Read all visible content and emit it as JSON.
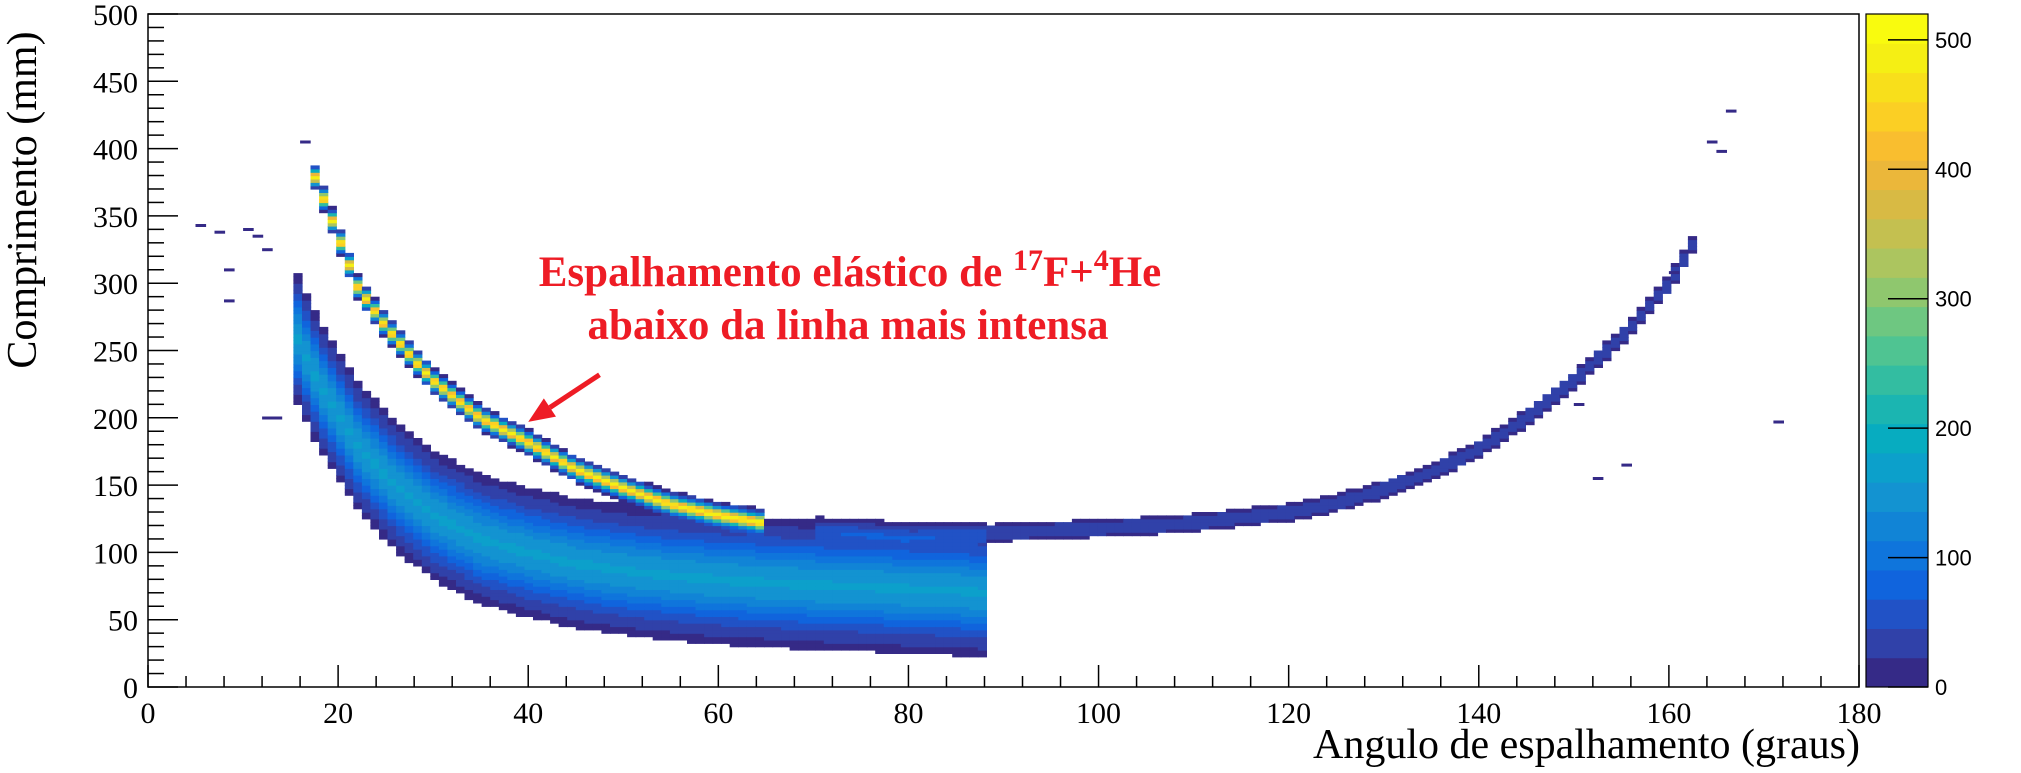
{
  "chart_data": {
    "type": "heatmap",
    "title": "",
    "xlabel": "Angulo de espalhamento (graus)",
    "ylabel": "Comprimento (mm)",
    "xlim": [
      0,
      180
    ],
    "ylim": [
      0,
      500
    ],
    "x_ticks": [
      0,
      20,
      40,
      60,
      80,
      100,
      120,
      140,
      160,
      180
    ],
    "y_ticks": [
      0,
      50,
      100,
      150,
      200,
      250,
      300,
      350,
      400,
      450,
      500
    ],
    "x_tick_labels": [
      "0",
      "20",
      "40",
      "60",
      "80",
      "100",
      "120",
      "140",
      "160",
      "180"
    ],
    "y_tick_labels": [
      "0",
      "50",
      "100",
      "150",
      "200",
      "250",
      "300",
      "350",
      "400",
      "450",
      "500"
    ],
    "colorbar": {
      "range": [
        0,
        520
      ],
      "ticks": [
        0,
        100,
        200,
        300,
        400,
        500
      ],
      "tick_labels": [
        "0",
        "100",
        "200",
        "300",
        "400",
        "500"
      ],
      "palette": [
        "#352a87",
        "#3041a9",
        "#2152c6",
        "#1064dd",
        "#0f75dc",
        "#1184d6",
        "#1393d1",
        "#0ca0cb",
        "#07acc0",
        "#1bb5b1",
        "#33bda1",
        "#4fc492",
        "#6ec781",
        "#8fc76e",
        "#acc55f",
        "#c4c050",
        "#d8ba44",
        "#ebb73a",
        "#f9be2f",
        "#fbcf24",
        "#f8df1b",
        "#f5ef14",
        "#f9fb0e"
      ]
    },
    "annotation": {
      "line1_prefix": "Espalhamento elástico de ",
      "sup1": "17",
      "mid": "F+",
      "sup2": "4",
      "suffix": "He",
      "line2": "abaixo da linha mais intensa",
      "arrow_from": [
        47.5,
        232
      ],
      "arrow_to": [
        40,
        197
      ]
    },
    "ridges": [
      {
        "name": "",
        "points": [
          [
            17.5,
            380
          ],
          [
            20,
            335
          ],
          [
            22,
            298
          ],
          [
            25,
            268
          ],
          [
            28,
            243
          ],
          [
            30,
            228
          ],
          [
            35,
            200
          ],
          [
            40,
            182
          ],
          [
            45,
            162
          ],
          [
            50,
            148
          ],
          [
            55,
            136
          ],
          [
            60,
            128
          ],
          [
            65,
            122
          ]
        ],
        "peak": 480
      },
      {
        "name": "",
        "points": [
          [
            15,
            270
          ],
          [
            18,
            225
          ],
          [
            22,
            180
          ],
          [
            26,
            150
          ],
          [
            30,
            128
          ],
          [
            35,
            110
          ],
          [
            40,
            100
          ],
          [
            45,
            92
          ],
          [
            50,
            87
          ],
          [
            55,
            83
          ],
          [
            60,
            80
          ],
          [
            65,
            78
          ],
          [
            70,
            76
          ],
          [
            75,
            75
          ],
          [
            80,
            73
          ],
          [
            85,
            72
          ],
          [
            88,
            70
          ]
        ],
        "peak": 160
      },
      {
        "name": "",
        "points": [
          [
            70,
            117
          ],
          [
            80,
            112
          ],
          [
            90,
            115
          ],
          [
            100,
            118
          ],
          [
            110,
            122
          ],
          [
            120,
            130
          ],
          [
            125,
            137
          ],
          [
            130,
            147
          ],
          [
            135,
            160
          ],
          [
            140,
            177
          ],
          [
            145,
            200
          ],
          [
            150,
            228
          ],
          [
            155,
            260
          ],
          [
            160,
            300
          ],
          [
            163,
            335
          ]
        ],
        "peak": 40
      }
    ],
    "scatter_cells": [
      [
        5,
        343
      ],
      [
        7,
        338
      ],
      [
        8,
        310
      ],
      [
        8,
        287
      ],
      [
        10,
        340
      ],
      [
        11,
        335
      ],
      [
        12,
        325
      ],
      [
        12,
        200
      ],
      [
        13,
        200
      ],
      [
        16,
        405
      ],
      [
        150,
        210
      ],
      [
        152,
        155
      ],
      [
        155,
        165
      ],
      [
        160,
        308
      ],
      [
        164,
        405
      ],
      [
        165,
        398
      ],
      [
        166,
        428
      ],
      [
        171,
        197
      ]
    ]
  }
}
